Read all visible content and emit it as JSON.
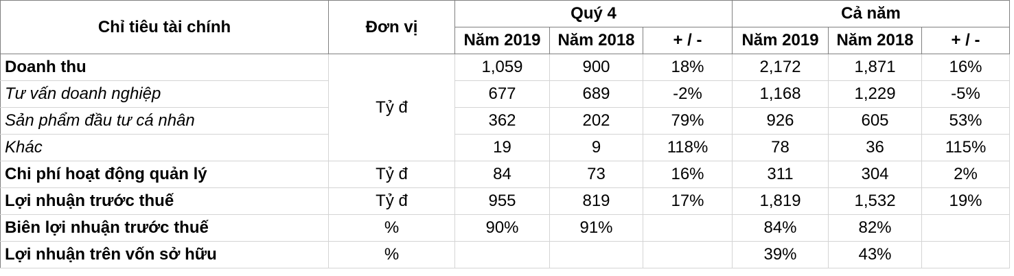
{
  "header": {
    "indicator": "Chỉ tiêu tài chính",
    "unit": "Đơn vị",
    "quarter_group": "Quý 4",
    "year_group": "Cả năm",
    "col_2019": "Năm 2019",
    "col_2018": "Năm 2018",
    "col_change": "+ / -"
  },
  "rows": [
    {
      "label": "Doanh thu",
      "unit": "",
      "q2019": "1,059",
      "q2018": "900",
      "qchg": "18%",
      "y2019": "2,172",
      "y2018": "1,871",
      "ychg": "16%"
    },
    {
      "label": "Tư vấn doanh nghiệp",
      "unit": "Tỷ đ",
      "q2019": "677",
      "q2018": "689",
      "qchg": "-2%",
      "y2019": "1,168",
      "y2018": "1,229",
      "ychg": "-5%"
    },
    {
      "label": "Sản phẩm đầu tư cá nhân",
      "unit": "",
      "q2019": "362",
      "q2018": "202",
      "qchg": "79%",
      "y2019": "926",
      "y2018": "605",
      "ychg": "53%"
    },
    {
      "label": "Khác",
      "unit": "",
      "q2019": "19",
      "q2018": "9",
      "qchg": "118%",
      "y2019": "78",
      "y2018": "36",
      "ychg": "115%"
    },
    {
      "label": "Chi phí hoạt động quản lý",
      "unit": "Tỷ đ",
      "q2019": "84",
      "q2018": "73",
      "qchg": "16%",
      "y2019": "311",
      "y2018": "304",
      "ychg": "2%"
    },
    {
      "label": "Lợi nhuận trước thuế",
      "unit": "Tỷ đ",
      "q2019": "955",
      "q2018": "819",
      "qchg": "17%",
      "y2019": "1,819",
      "y2018": "1,532",
      "ychg": "19%"
    },
    {
      "label": "Biên lợi nhuận trước thuế",
      "unit": "%",
      "q2019": "90%",
      "q2018": "91%",
      "qchg": "",
      "y2019": "84%",
      "y2018": "82%",
      "ychg": ""
    },
    {
      "label": "Lợi nhuận trên vốn sở hữu",
      "unit": "%",
      "q2019": "",
      "q2018": "",
      "qchg": "",
      "y2019": "39%",
      "y2018": "43%",
      "ychg": ""
    }
  ]
}
